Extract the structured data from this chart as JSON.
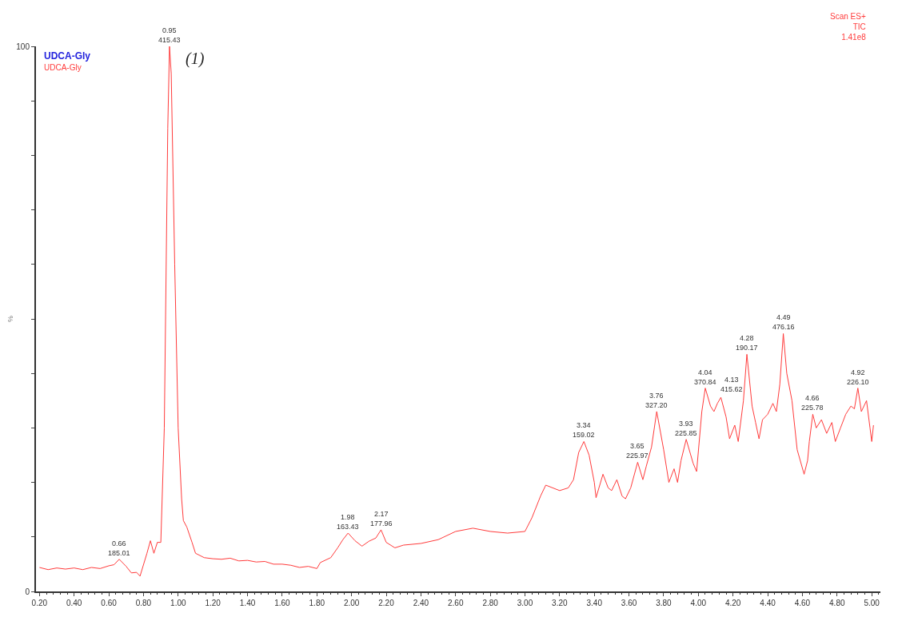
{
  "chart_data": {
    "type": "line",
    "title": "UDCA-Gly",
    "subtitle": "UDCA-Gly",
    "ylabel": "%",
    "x": [
      0.2,
      0.25,
      0.3,
      0.35,
      0.4,
      0.45,
      0.5,
      0.55,
      0.6,
      0.63,
      0.66,
      0.7,
      0.73,
      0.76,
      0.78,
      0.82,
      0.84,
      0.86,
      0.88,
      0.9,
      0.92,
      0.94,
      0.95,
      0.96,
      0.98,
      1.0,
      1.02,
      1.03,
      1.05,
      1.08,
      1.1,
      1.15,
      1.2,
      1.25,
      1.3,
      1.35,
      1.4,
      1.45,
      1.5,
      1.55,
      1.6,
      1.65,
      1.7,
      1.75,
      1.8,
      1.82,
      1.88,
      1.92,
      1.95,
      1.98,
      2.02,
      2.06,
      2.1,
      2.14,
      2.17,
      2.2,
      2.25,
      2.3,
      2.4,
      2.5,
      2.6,
      2.7,
      2.8,
      2.9,
      3.0,
      3.04,
      3.09,
      3.12,
      3.2,
      3.25,
      3.28,
      3.31,
      3.34,
      3.37,
      3.4,
      3.41,
      3.45,
      3.48,
      3.5,
      3.53,
      3.56,
      3.58,
      3.61,
      3.65,
      3.68,
      3.7,
      3.73,
      3.76,
      3.8,
      3.83,
      3.86,
      3.88,
      3.9,
      3.93,
      3.97,
      3.99,
      4.02,
      4.04,
      4.07,
      4.09,
      4.11,
      4.13,
      4.16,
      4.18,
      4.21,
      4.23,
      4.26,
      4.28,
      4.31,
      4.33,
      4.35,
      4.37,
      4.4,
      4.43,
      4.45,
      4.47,
      4.49,
      4.51,
      4.54,
      4.57,
      4.61,
      4.63,
      4.64,
      4.66,
      4.68,
      4.71,
      4.74,
      4.77,
      4.79,
      4.82,
      4.85,
      4.88,
      4.9,
      4.92,
      4.94,
      4.97,
      4.99,
      5.0,
      5.01
    ],
    "series": [
      {
        "color": "#ff3b3b",
        "values": [
          4.4,
          4.0,
          4.3,
          4.1,
          4.3,
          4.0,
          4.4,
          4.2,
          4.7,
          4.9,
          5.9,
          4.6,
          3.4,
          3.5,
          2.8,
          7.0,
          9.3,
          7.0,
          9.0,
          9.0,
          30,
          85,
          100,
          95,
          60,
          30,
          17,
          13.0,
          11.8,
          9.0,
          7.0,
          6.2,
          6.0,
          5.9,
          6.1,
          5.6,
          5.7,
          5.4,
          5.5,
          5.0,
          5.0,
          4.8,
          4.4,
          4.6,
          4.2,
          5.3,
          6.2,
          8.0,
          9.5,
          10.7,
          9.3,
          8.3,
          9.2,
          9.8,
          11.3,
          9.0,
          8.0,
          8.5,
          8.8,
          9.5,
          11.0,
          11.6,
          11.0,
          10.7,
          11.0,
          13.5,
          17.5,
          19.5,
          18.5,
          19.0,
          20.5,
          25.5,
          27.5,
          25.0,
          20.0,
          17.2,
          21.5,
          19.0,
          18.5,
          20.5,
          17.5,
          17.0,
          19.0,
          23.7,
          20.5,
          23.0,
          26.5,
          33.0,
          26.0,
          20.0,
          22.5,
          20.0,
          24.0,
          27.9,
          23.5,
          22.0,
          33.0,
          37.3,
          34.0,
          33.0,
          34.5,
          35.6,
          32.0,
          28.0,
          30.5,
          27.5,
          35.0,
          43.5,
          34.0,
          31.0,
          28.0,
          31.5,
          32.5,
          34.5,
          33.0,
          38.0,
          47.3,
          40.0,
          35.0,
          26.0,
          21.5,
          24.0,
          27.5,
          32.5,
          30.0,
          31.5,
          29.0,
          31.0,
          27.5,
          30.0,
          32.5,
          34.0,
          33.5,
          37.3,
          33.0,
          35.0,
          30.0,
          27.5,
          30.5
        ]
      }
    ],
    "xlim": [
      0.18,
      5.05
    ],
    "ylim": [
      0,
      100
    ],
    "xticks": [
      {
        "value": 0.2,
        "label": "0.20"
      },
      {
        "value": 0.4,
        "label": "0.40"
      },
      {
        "value": 0.6,
        "label": "0.60"
      },
      {
        "value": 0.8,
        "label": "0.80"
      },
      {
        "value": 1.0,
        "label": "1.00"
      },
      {
        "value": 1.2,
        "label": "1.20"
      },
      {
        "value": 1.4,
        "label": "1.40"
      },
      {
        "value": 1.6,
        "label": "1.60"
      },
      {
        "value": 1.8,
        "label": "1.80"
      },
      {
        "value": 2.0,
        "label": "2.00"
      },
      {
        "value": 2.2,
        "label": "2.20"
      },
      {
        "value": 2.4,
        "label": "2.40"
      },
      {
        "value": 2.6,
        "label": "2.60"
      },
      {
        "value": 2.8,
        "label": "2.80"
      },
      {
        "value": 3.0,
        "label": "3.00"
      },
      {
        "value": 3.2,
        "label": "3.20"
      },
      {
        "value": 3.4,
        "label": "3.40"
      },
      {
        "value": 3.6,
        "label": "3.60"
      },
      {
        "value": 3.8,
        "label": "3.80"
      },
      {
        "value": 4.0,
        "label": "4.00"
      },
      {
        "value": 4.2,
        "label": "4.20"
      },
      {
        "value": 4.4,
        "label": "4.40"
      },
      {
        "value": 4.6,
        "label": "4.60"
      },
      {
        "value": 4.8,
        "label": "4.80"
      },
      {
        "value": 5.0,
        "label": "5.00"
      }
    ],
    "yticks": [
      0,
      {
        "value": 10,
        "label": null
      },
      {
        "value": 20,
        "label": null
      },
      {
        "value": 30,
        "label": null
      },
      {
        "value": 40,
        "label": null
      },
      {
        "value": 50,
        "label": null
      },
      {
        "value": 60,
        "label": null
      },
      {
        "value": 70,
        "label": null
      },
      {
        "value": 80,
        "label": null
      },
      {
        "value": 90,
        "label": null
      },
      100
    ],
    "marker": "none",
    "line_style": "solid",
    "annotations": [
      {
        "text": "0.66\n185.01",
        "x": 0.66,
        "y": 5.9
      },
      {
        "text": "0.95\n415.43",
        "x": 0.95,
        "y": 100
      },
      {
        "text": "1.98\n163.43",
        "x": 1.98,
        "y": 10.7
      },
      {
        "text": "2.17\n177.96",
        "x": 2.17,
        "y": 11.3
      },
      {
        "text": "3.34\n159.02",
        "x": 3.34,
        "y": 27.5
      },
      {
        "text": "3.65\n225.97",
        "x": 3.65,
        "y": 23.7
      },
      {
        "text": "3.76\n327.20",
        "x": 3.76,
        "y": 33.0
      },
      {
        "text": "3.93\n225.85",
        "x": 3.93,
        "y": 27.9
      },
      {
        "text": "4.04\n370.84",
        "x": 4.04,
        "y": 37.3
      },
      {
        "text": "4.13\n415.62",
        "x": 4.13,
        "y": 35.6
      },
      {
        "text": "4.28\n190.17",
        "x": 4.28,
        "y": 43.5
      },
      {
        "text": "4.49\n476.16",
        "x": 4.49,
        "y": 47.3
      },
      {
        "text": "4.66\n225.78",
        "x": 4.66,
        "y": 32.5
      },
      {
        "text": "4.92\n226.10",
        "x": 4.92,
        "y": 37.3
      },
      "(1)",
      "Scan ES+\nTIC\n1.41e8"
    ]
  }
}
